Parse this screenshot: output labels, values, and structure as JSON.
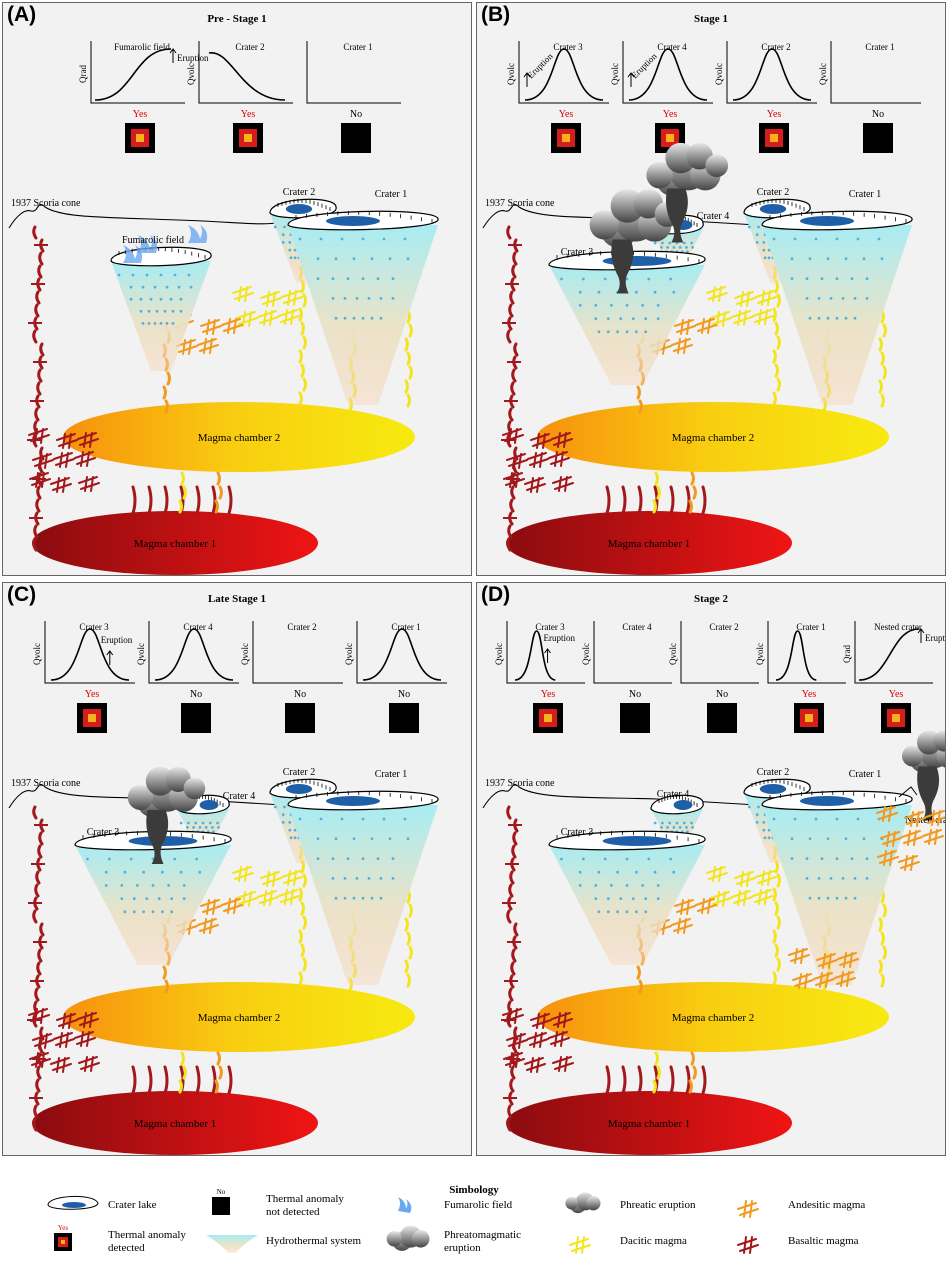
{
  "panels": [
    {
      "label": "(A)",
      "title": "Pre - Stage 1",
      "graphs": [
        {
          "title": "Fumarolic field",
          "ylabel": "Qrad",
          "curve": "rise",
          "eruption": "Eruption",
          "status": "Yes",
          "detected": true
        },
        {
          "title": "Crater 2",
          "ylabel": "Qvolc",
          "curve": "fall",
          "eruption": "",
          "status": "Yes",
          "detected": true
        },
        {
          "title": "Crater 1",
          "ylabel": "",
          "curve": "none",
          "eruption": "",
          "status": "No",
          "detected": false
        }
      ],
      "scene": {
        "cone": "1937 Scoria cone",
        "fumarolic": "Fumarolic field",
        "crater2": "Crater 2",
        "crater1": "Crater 1",
        "chamber2": "Magma chamber 2",
        "chamber1": "Magma chamber 1"
      }
    },
    {
      "label": "(B)",
      "title": "Stage 1",
      "graphs": [
        {
          "title": "Crater 3",
          "ylabel": "Qvolc",
          "curve": "bell",
          "eruption": "Eruption",
          "status": "Yes",
          "detected": true
        },
        {
          "title": "Crater 4",
          "ylabel": "Qvolc",
          "curve": "bell",
          "eruption": "Eruption",
          "status": "Yes",
          "detected": true
        },
        {
          "title": "Crater 2",
          "ylabel": "Qvolc",
          "curve": "bell",
          "eruption": "",
          "status": "Yes",
          "detected": true
        },
        {
          "title": "Crater 1",
          "ylabel": "Qvolc",
          "curve": "none",
          "eruption": "",
          "status": "No",
          "detected": false
        }
      ],
      "scene": {
        "cone": "1937 Scoria cone",
        "crater3": "Crater 3",
        "crater4": "Crater 4",
        "crater2": "Crater 2",
        "crater1": "Crater 1",
        "chamber2": "Magma chamber 2",
        "chamber1": "Magma chamber 1"
      }
    },
    {
      "label": "(C)",
      "title": "Late Stage 1",
      "graphs": [
        {
          "title": "Crater 3",
          "ylabel": "Qvolc",
          "curve": "bell",
          "eruption": "Eruption",
          "status": "Yes",
          "detected": true
        },
        {
          "title": "Crater 4",
          "ylabel": "Qvolc",
          "curve": "bell",
          "eruption": "",
          "status": "No",
          "detected": false
        },
        {
          "title": "Crater 2",
          "ylabel": "Qvolc",
          "curve": "none",
          "eruption": "",
          "status": "No",
          "detected": false
        },
        {
          "title": "Crater 1",
          "ylabel": "Qvolc",
          "curve": "bell",
          "eruption": "",
          "status": "No",
          "detected": false
        }
      ],
      "scene": {
        "cone": "1937 Scoria cone",
        "crater3": "Crater 3",
        "crater4": "Crater 4",
        "crater2": "Crater 2",
        "crater1": "Crater 1",
        "chamber2": "Magma chamber 2",
        "chamber1": "Magma chamber 1"
      }
    },
    {
      "label": "(D)",
      "title": "Stage 2",
      "graphs": [
        {
          "title": "Crater 3",
          "ylabel": "Qvolc",
          "curve": "narrow",
          "eruption": "Eruption",
          "status": "Yes",
          "detected": true
        },
        {
          "title": "Crater 4",
          "ylabel": "Qvolc",
          "curve": "none",
          "eruption": "",
          "status": "No",
          "detected": false
        },
        {
          "title": "Crater 2",
          "ylabel": "Qvolc",
          "curve": "none",
          "eruption": "",
          "status": "No",
          "detected": false
        },
        {
          "title": "Crater 1",
          "ylabel": "Qvolc",
          "curve": "narrow",
          "eruption": "",
          "status": "Yes",
          "detected": true
        },
        {
          "title": "Nested crater",
          "ylabel": "Qrad",
          "curve": "rise",
          "eruption": "Eruption",
          "status": "Yes",
          "detected": true
        }
      ],
      "scene": {
        "cone": "1937 Scoria cone",
        "crater3": "Crater 3",
        "crater4": "Crater 4",
        "crater2": "Crater 2",
        "crater1": "Crater 1",
        "nested": "Nested crater",
        "chamber2": "Magma chamber 2",
        "chamber1": "Magma chamber 1"
      }
    }
  ],
  "legend": {
    "title": "Simbology",
    "items": [
      {
        "icon": "crater-lake-icon",
        "text": "Crater lake"
      },
      {
        "icon": "thermal-not-detected-icon",
        "badge": "No",
        "text": "Thermal anomaly not detected"
      },
      {
        "icon": "fumarolic-field-icon",
        "text": "Fumarolic field"
      },
      {
        "icon": "phreatic-eruption-icon",
        "text": "Phreatic eruption"
      },
      {
        "icon": "andesitic-magma-icon",
        "text": "Andesitic magma"
      },
      {
        "icon": "thermal-detected-icon",
        "badge": "Yes",
        "text": "Thermal anomaly detected"
      },
      {
        "icon": "hydrothermal-system-icon",
        "text": "Hydrothermal system"
      },
      {
        "icon": "phreatomagmatic-eruption-icon",
        "text": "Phreatomagmatic eruption"
      },
      {
        "icon": "dacitic-magma-icon",
        "text": "Dacitic magma"
      },
      {
        "icon": "basaltic-magma-icon",
        "text": "Basaltic magma"
      }
    ]
  },
  "colors": {
    "yes": "#e00000",
    "anomaly_outer": "#d81c1c",
    "anomaly_inner": "#f6b21a",
    "lake": "#1f5fa8",
    "dacite": "#f2e51f",
    "andesite": "#f29a1f",
    "basalt": "#a2181c"
  }
}
